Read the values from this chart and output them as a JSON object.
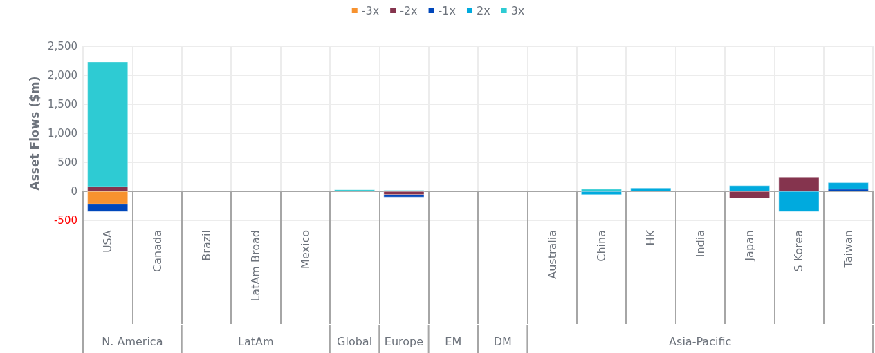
{
  "chart_data": {
    "type": "bar",
    "stacked": true,
    "ylabel": "Asset Flows ($m)",
    "categories": [
      "USA",
      "Canada",
      "Brazil",
      "LatAm Broad",
      "Mexico",
      null,
      null,
      null,
      null,
      "Australia",
      "China",
      "HK",
      "India",
      "Japan",
      "S Korea",
      "Taiwan"
    ],
    "series": [
      {
        "name": "-3x",
        "color": "#f7922f",
        "values": [
          -220,
          null,
          null,
          null,
          null,
          null,
          null,
          null,
          null,
          null,
          null,
          null,
          null,
          null,
          null,
          null
        ]
      },
      {
        "name": "-2x",
        "color": "#85344e",
        "values": [
          80,
          null,
          null,
          null,
          null,
          null,
          -60,
          null,
          null,
          null,
          null,
          null,
          null,
          -120,
          250,
          null
        ]
      },
      {
        "name": "-1x",
        "color": "#0047bb",
        "values": [
          -130,
          null,
          null,
          null,
          null,
          null,
          -40,
          null,
          null,
          null,
          null,
          null,
          null,
          null,
          null,
          40
        ]
      },
      {
        "name": "2x",
        "color": "#00aade",
        "values": [
          null,
          null,
          null,
          null,
          null,
          null,
          null,
          null,
          null,
          null,
          -60,
          60,
          null,
          100,
          -350,
          110
        ]
      },
      {
        "name": "3x",
        "color": "#2ecbd3",
        "values": [
          2150,
          null,
          null,
          null,
          null,
          30,
          20,
          null,
          null,
          null,
          40,
          null,
          null,
          null,
          null,
          null
        ]
      }
    ],
    "ylim": [
      -500,
      2500
    ],
    "yticks": [
      -500,
      0,
      500,
      {
        "value": 1000,
        "label": "1,000"
      },
      {
        "value": 1500,
        "label": "1,500"
      },
      {
        "value": 2000,
        "label": "2,000"
      },
      {
        "value": 2500,
        "label": "2,500"
      }
    ],
    "grid": true,
    "legend": "top",
    "annotations": [
      "N. America",
      "LatAm",
      "Global",
      "Europe",
      "EM",
      "DM",
      "Asia-Pacific"
    ]
  }
}
